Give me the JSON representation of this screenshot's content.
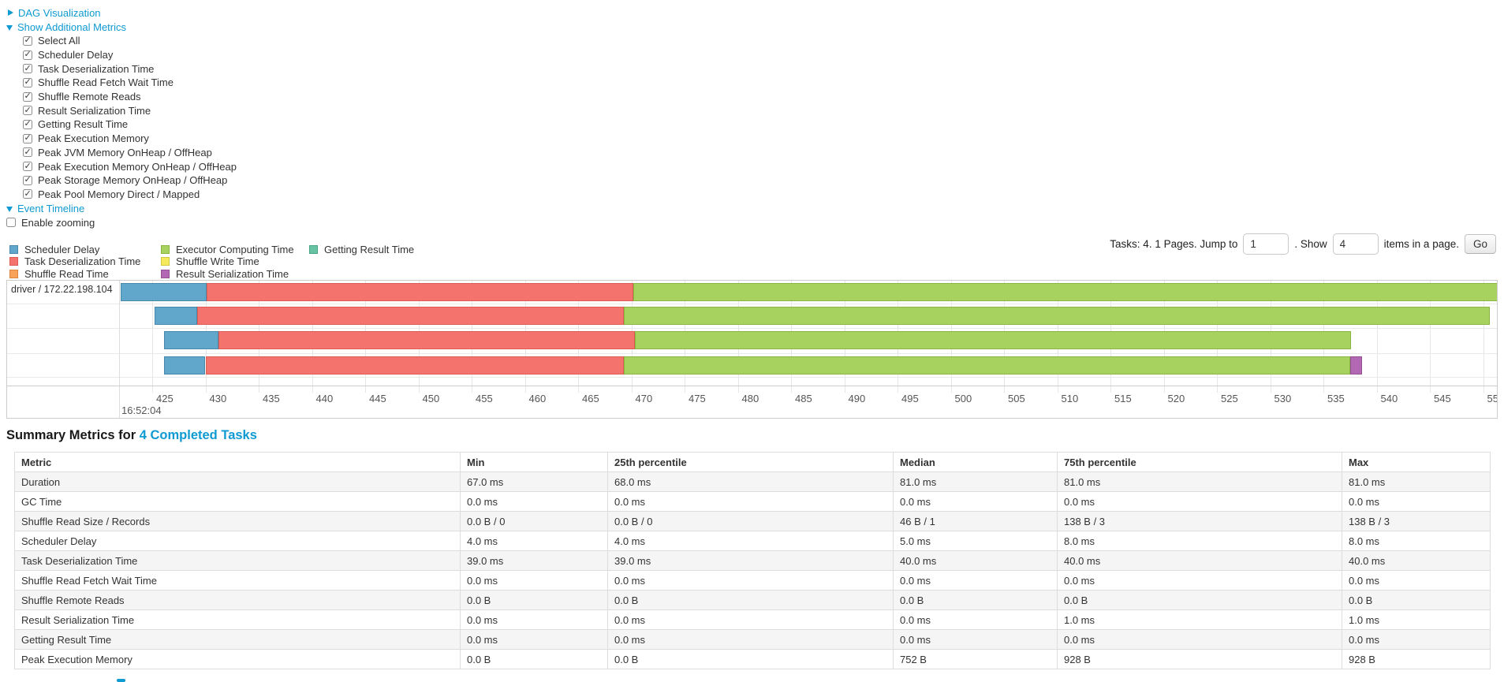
{
  "colors": {
    "link": "#0f9ad2",
    "scheduler_delay": {
      "fill": "#60a7cb",
      "border": "#4888ab"
    },
    "task_deserialization": {
      "fill": "#f4736c",
      "border": "#dd5c55"
    },
    "shuffle_read": {
      "fill": "#f8a25a",
      "border": "#dd8538"
    },
    "executor_computing": {
      "fill": "#a7d25f",
      "border": "#8ab53e"
    },
    "shuffle_write": {
      "fill": "#f4e95c",
      "border": "#d6c83e"
    },
    "result_serialization": {
      "fill": "#b268b2",
      "border": "#935093"
    },
    "getting_result": {
      "fill": "#67c2a3",
      "border": "#4aa585"
    }
  },
  "panel": {
    "dag": {
      "label": "DAG Visualization"
    },
    "show_metrics": {
      "label": "Show Additional Metrics"
    },
    "checkboxes": [
      {
        "label": "Select All",
        "checked": true
      },
      {
        "label": "Scheduler Delay",
        "checked": true
      },
      {
        "label": "Task Deserialization Time",
        "checked": true
      },
      {
        "label": "Shuffle Read Fetch Wait Time",
        "checked": true
      },
      {
        "label": "Shuffle Remote Reads",
        "checked": true
      },
      {
        "label": "Result Serialization Time",
        "checked": true
      },
      {
        "label": "Getting Result Time",
        "checked": true
      },
      {
        "label": "Peak Execution Memory",
        "checked": true
      },
      {
        "label": "Peak JVM Memory OnHeap / OffHeap",
        "checked": true
      },
      {
        "label": "Peak Execution Memory OnHeap / OffHeap",
        "checked": true
      },
      {
        "label": "Peak Storage Memory OnHeap / OffHeap",
        "checked": true
      },
      {
        "label": "Peak Pool Memory Direct / Mapped",
        "checked": true
      }
    ],
    "event_timeline": {
      "label": "Event Timeline"
    },
    "enable_zooming": {
      "label": "Enable zooming",
      "checked": false
    }
  },
  "legend": {
    "columns": [
      [
        {
          "key": "scheduler_delay",
          "label": "Scheduler Delay"
        },
        {
          "key": "task_deserialization",
          "label": "Task Deserialization Time"
        },
        {
          "key": "shuffle_read",
          "label": "Shuffle Read Time"
        }
      ],
      [
        {
          "key": "executor_computing",
          "label": "Executor Computing Time"
        },
        {
          "key": "shuffle_write",
          "label": "Shuffle Write Time"
        },
        {
          "key": "result_serialization",
          "label": "Result Serialization Time"
        }
      ],
      [
        {
          "key": "getting_result",
          "label": "Getting Result Time"
        }
      ]
    ]
  },
  "pagination": {
    "prefix": "Tasks: 4. 1 Pages. Jump to",
    "jump_value": "1",
    "mid": ". Show",
    "show_value": "4",
    "suffix": "items in a page.",
    "go": "Go"
  },
  "chart_data": {
    "type": "timeline",
    "group_label": "driver / 172.22.198.104",
    "time_label": "16:52:04",
    "axis": {
      "tick_start": 425,
      "tick_step": 5,
      "tick_count": 26,
      "unit": "ms within 16:52:04",
      "xlim": [
        421.5,
        551.5
      ]
    },
    "tasks": [
      {
        "segments": [
          {
            "metric": "scheduler_delay",
            "start": 422.0,
            "end": 430.1
          },
          {
            "metric": "task_deserialization",
            "start": 430.1,
            "end": 470.2
          },
          {
            "metric": "executor_computing",
            "start": 470.2,
            "end": 551.5
          }
        ]
      },
      {
        "segments": [
          {
            "metric": "scheduler_delay",
            "start": 425.2,
            "end": 429.2
          },
          {
            "metric": "task_deserialization",
            "start": 429.2,
            "end": 469.3
          },
          {
            "metric": "executor_computing",
            "start": 469.3,
            "end": 550.6
          }
        ]
      },
      {
        "segments": [
          {
            "metric": "scheduler_delay",
            "start": 426.1,
            "end": 431.2
          },
          {
            "metric": "task_deserialization",
            "start": 431.2,
            "end": 470.3
          },
          {
            "metric": "executor_computing",
            "start": 470.3,
            "end": 537.6
          }
        ]
      },
      {
        "segments": [
          {
            "metric": "scheduler_delay",
            "start": 426.1,
            "end": 430.0
          },
          {
            "metric": "task_deserialization",
            "start": 430.0,
            "end": 469.3
          },
          {
            "metric": "executor_computing",
            "start": 469.3,
            "end": 537.5
          },
          {
            "metric": "result_serialization",
            "start": 537.5,
            "end": 538.6
          }
        ]
      }
    ]
  },
  "summary": {
    "prefix": "Summary Metrics for",
    "link": "4 Completed Tasks"
  },
  "table": {
    "headers": [
      "Metric",
      "Min",
      "25th percentile",
      "Median",
      "75th percentile",
      "Max"
    ],
    "rows": [
      {
        "metric": "Duration",
        "values": [
          "67.0 ms",
          "68.0 ms",
          "81.0 ms",
          "81.0 ms",
          "81.0 ms"
        ]
      },
      {
        "metric": "GC Time",
        "values": [
          "0.0 ms",
          "0.0 ms",
          "0.0 ms",
          "0.0 ms",
          "0.0 ms"
        ]
      },
      {
        "metric": "Shuffle Read Size / Records",
        "values": [
          "0.0 B / 0",
          "0.0 B / 0",
          "46 B / 1",
          "138 B / 3",
          "138 B / 3"
        ]
      },
      {
        "metric": "Scheduler Delay",
        "values": [
          "4.0 ms",
          "4.0 ms",
          "5.0 ms",
          "8.0 ms",
          "8.0 ms"
        ]
      },
      {
        "metric": "Task Deserialization Time",
        "values": [
          "39.0 ms",
          "39.0 ms",
          "40.0 ms",
          "40.0 ms",
          "40.0 ms"
        ]
      },
      {
        "metric": "Shuffle Read Fetch Wait Time",
        "values": [
          "0.0 ms",
          "0.0 ms",
          "0.0 ms",
          "0.0 ms",
          "0.0 ms"
        ]
      },
      {
        "metric": "Shuffle Remote Reads",
        "values": [
          "0.0 B",
          "0.0 B",
          "0.0 B",
          "0.0 B",
          "0.0 B"
        ]
      },
      {
        "metric": "Result Serialization Time",
        "values": [
          "0.0 ms",
          "0.0 ms",
          "0.0 ms",
          "1.0 ms",
          "1.0 ms"
        ]
      },
      {
        "metric": "Getting Result Time",
        "values": [
          "0.0 ms",
          "0.0 ms",
          "0.0 ms",
          "0.0 ms",
          "0.0 ms"
        ]
      },
      {
        "metric": "Peak Execution Memory",
        "values": [
          "0.0 B",
          "0.0 B",
          "752 B",
          "928 B",
          "928 B"
        ]
      }
    ]
  }
}
